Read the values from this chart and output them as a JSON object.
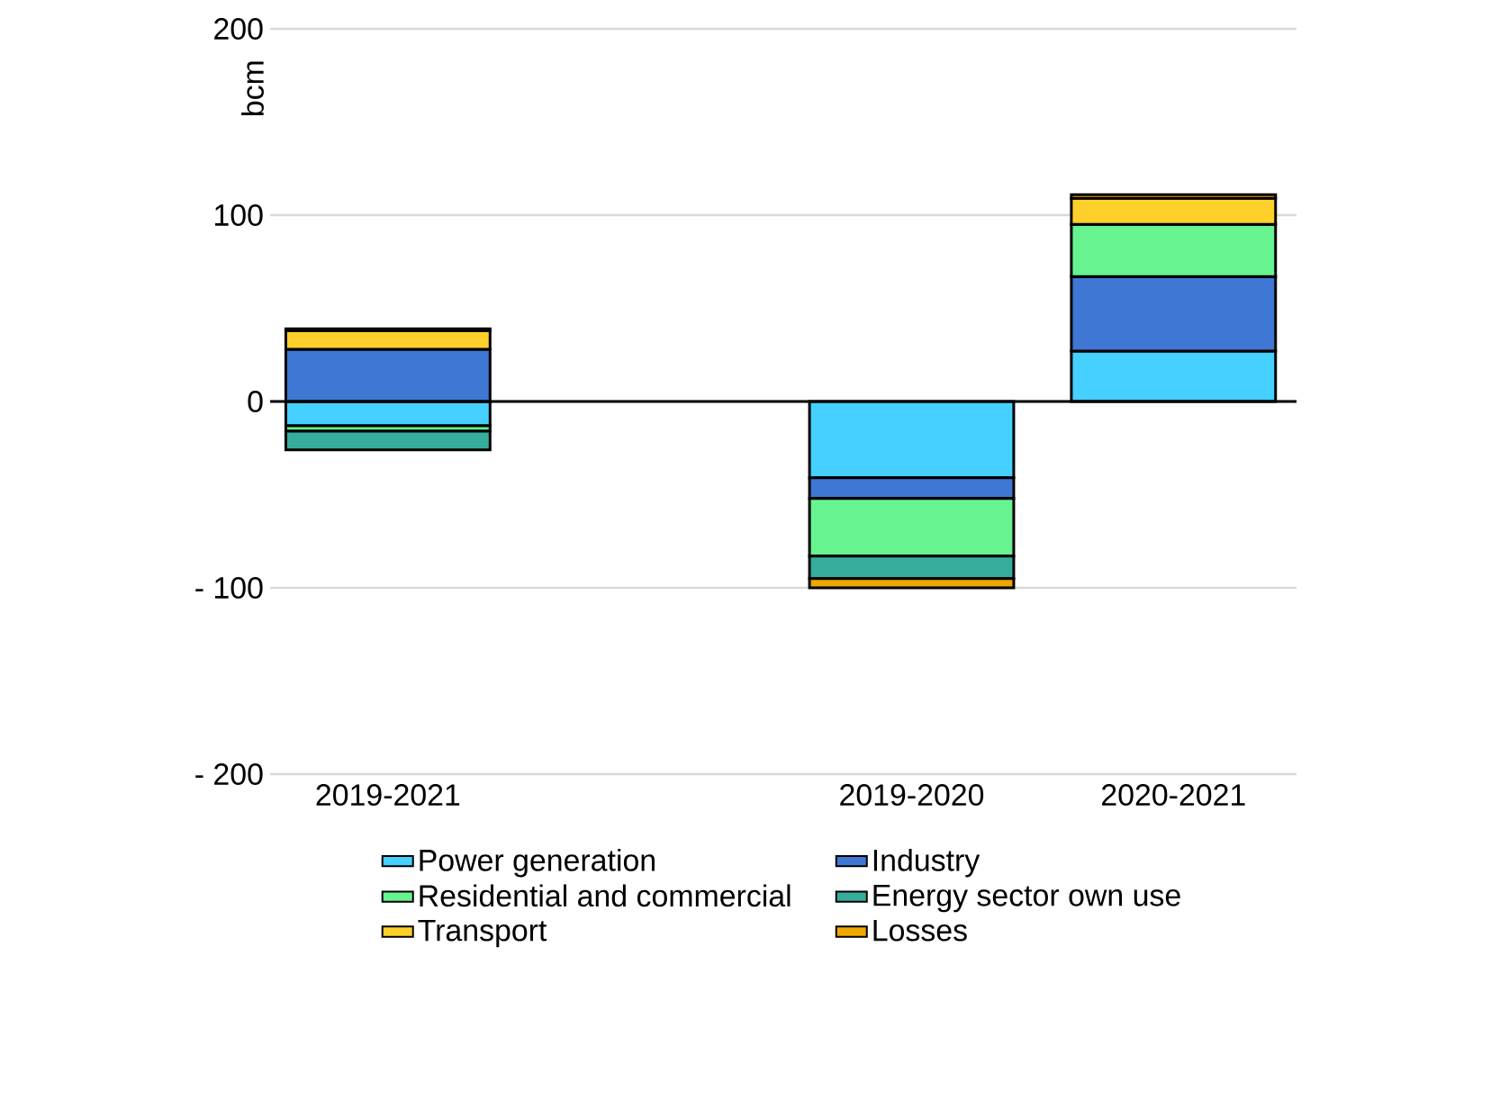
{
  "chart_data": {
    "type": "bar",
    "stacked": true,
    "ylabel": "bcm",
    "categories": [
      "2019-2021",
      null,
      "2019-2020",
      "2020-2021"
    ],
    "series": [
      {
        "name": "Power generation",
        "color": "#45d0ff",
        "values": [
          -13,
          null,
          -41,
          27
        ]
      },
      {
        "name": "Industry",
        "color": "#3f77d4",
        "values": [
          28,
          null,
          -11,
          40
        ]
      },
      {
        "name": "Residential and commercial",
        "color": "#68f391",
        "values": [
          -3,
          null,
          -31,
          28
        ]
      },
      {
        "name": "Energy sector own use",
        "color": "#35ac9c",
        "values": [
          -10,
          null,
          -12,
          0
        ]
      },
      {
        "name": "Transport",
        "color": "#ffd02a",
        "values": [
          10,
          null,
          0,
          14
        ]
      },
      {
        "name": "Losses",
        "color": "#f0a800",
        "values": [
          1,
          null,
          -5,
          2
        ]
      }
    ],
    "ylim": [
      -200,
      200
    ],
    "yticks": [
      {
        "value": -200,
        "label": "- 200"
      },
      {
        "value": -100,
        "label": "- 100"
      },
      0,
      100,
      200
    ],
    "grid": "y",
    "legend": "bottom"
  }
}
